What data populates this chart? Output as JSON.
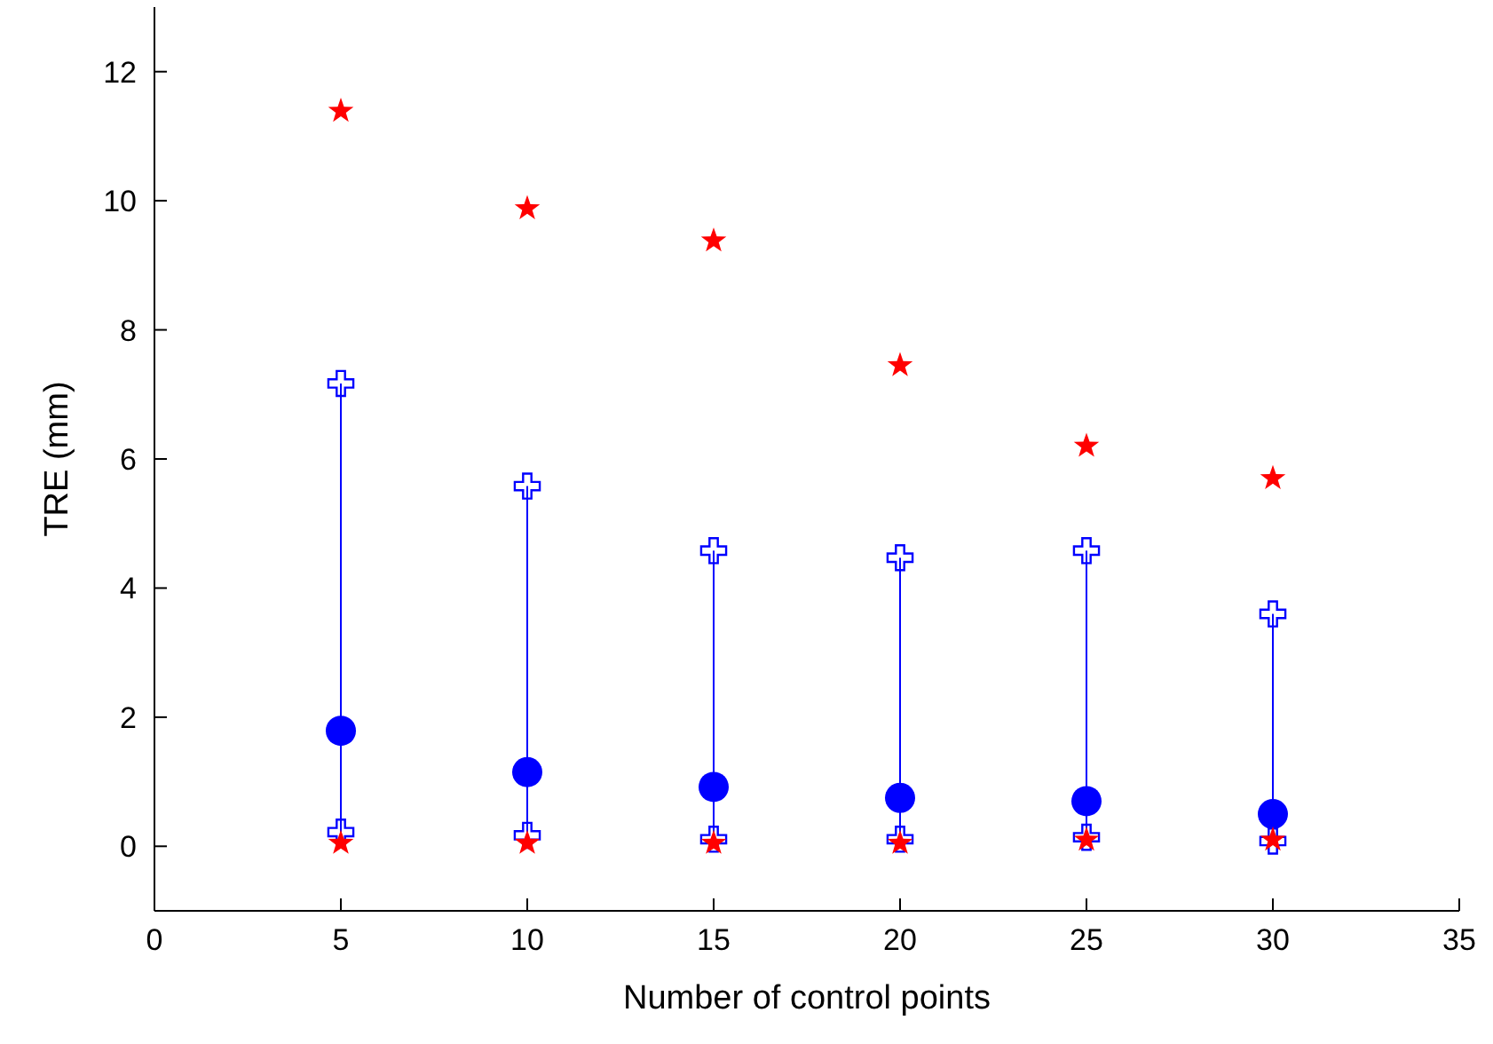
{
  "chart_data": {
    "type": "scatter",
    "xlabel": "Number of control points",
    "ylabel": "TRE (mm)",
    "x": [
      5,
      10,
      15,
      20,
      25,
      30
    ],
    "series": [
      {
        "marker": "circle",
        "color": "#0000ff",
        "values": [
          1.79,
          1.15,
          0.92,
          0.75,
          0.7,
          0.5
        ],
        "errors": [
          [
            0.22,
            7.17
          ],
          [
            0.17,
            5.58
          ],
          [
            0.11,
            4.58
          ],
          [
            0.11,
            4.47
          ],
          [
            0.14,
            4.58
          ],
          [
            0.08,
            3.6
          ]
        ]
      },
      {
        "marker": "cross",
        "color": "#0000ff",
        "values": [
          7.17,
          5.58,
          4.58,
          4.47,
          4.58,
          3.6
        ]
      },
      {
        "marker": "cross",
        "color": "#0000ff",
        "values": [
          0.22,
          0.17,
          0.11,
          0.11,
          0.14,
          0.08
        ]
      },
      {
        "marker": "star",
        "color": "#ff0000",
        "values": [
          11.39,
          9.88,
          9.38,
          7.45,
          6.2,
          5.7
        ]
      },
      {
        "marker": "star",
        "color": "#ff0000",
        "values": [
          0.05,
          0.05,
          0.05,
          0.05,
          0.1,
          0.1
        ]
      }
    ],
    "xlim": [
      0,
      35
    ],
    "xticks": [
      0,
      5,
      10,
      15,
      20,
      25,
      30,
      35
    ],
    "ylim": [
      -1,
      13
    ],
    "yticks": [
      0,
      2,
      4,
      6,
      8,
      10,
      12
    ],
    "grid": false
  }
}
